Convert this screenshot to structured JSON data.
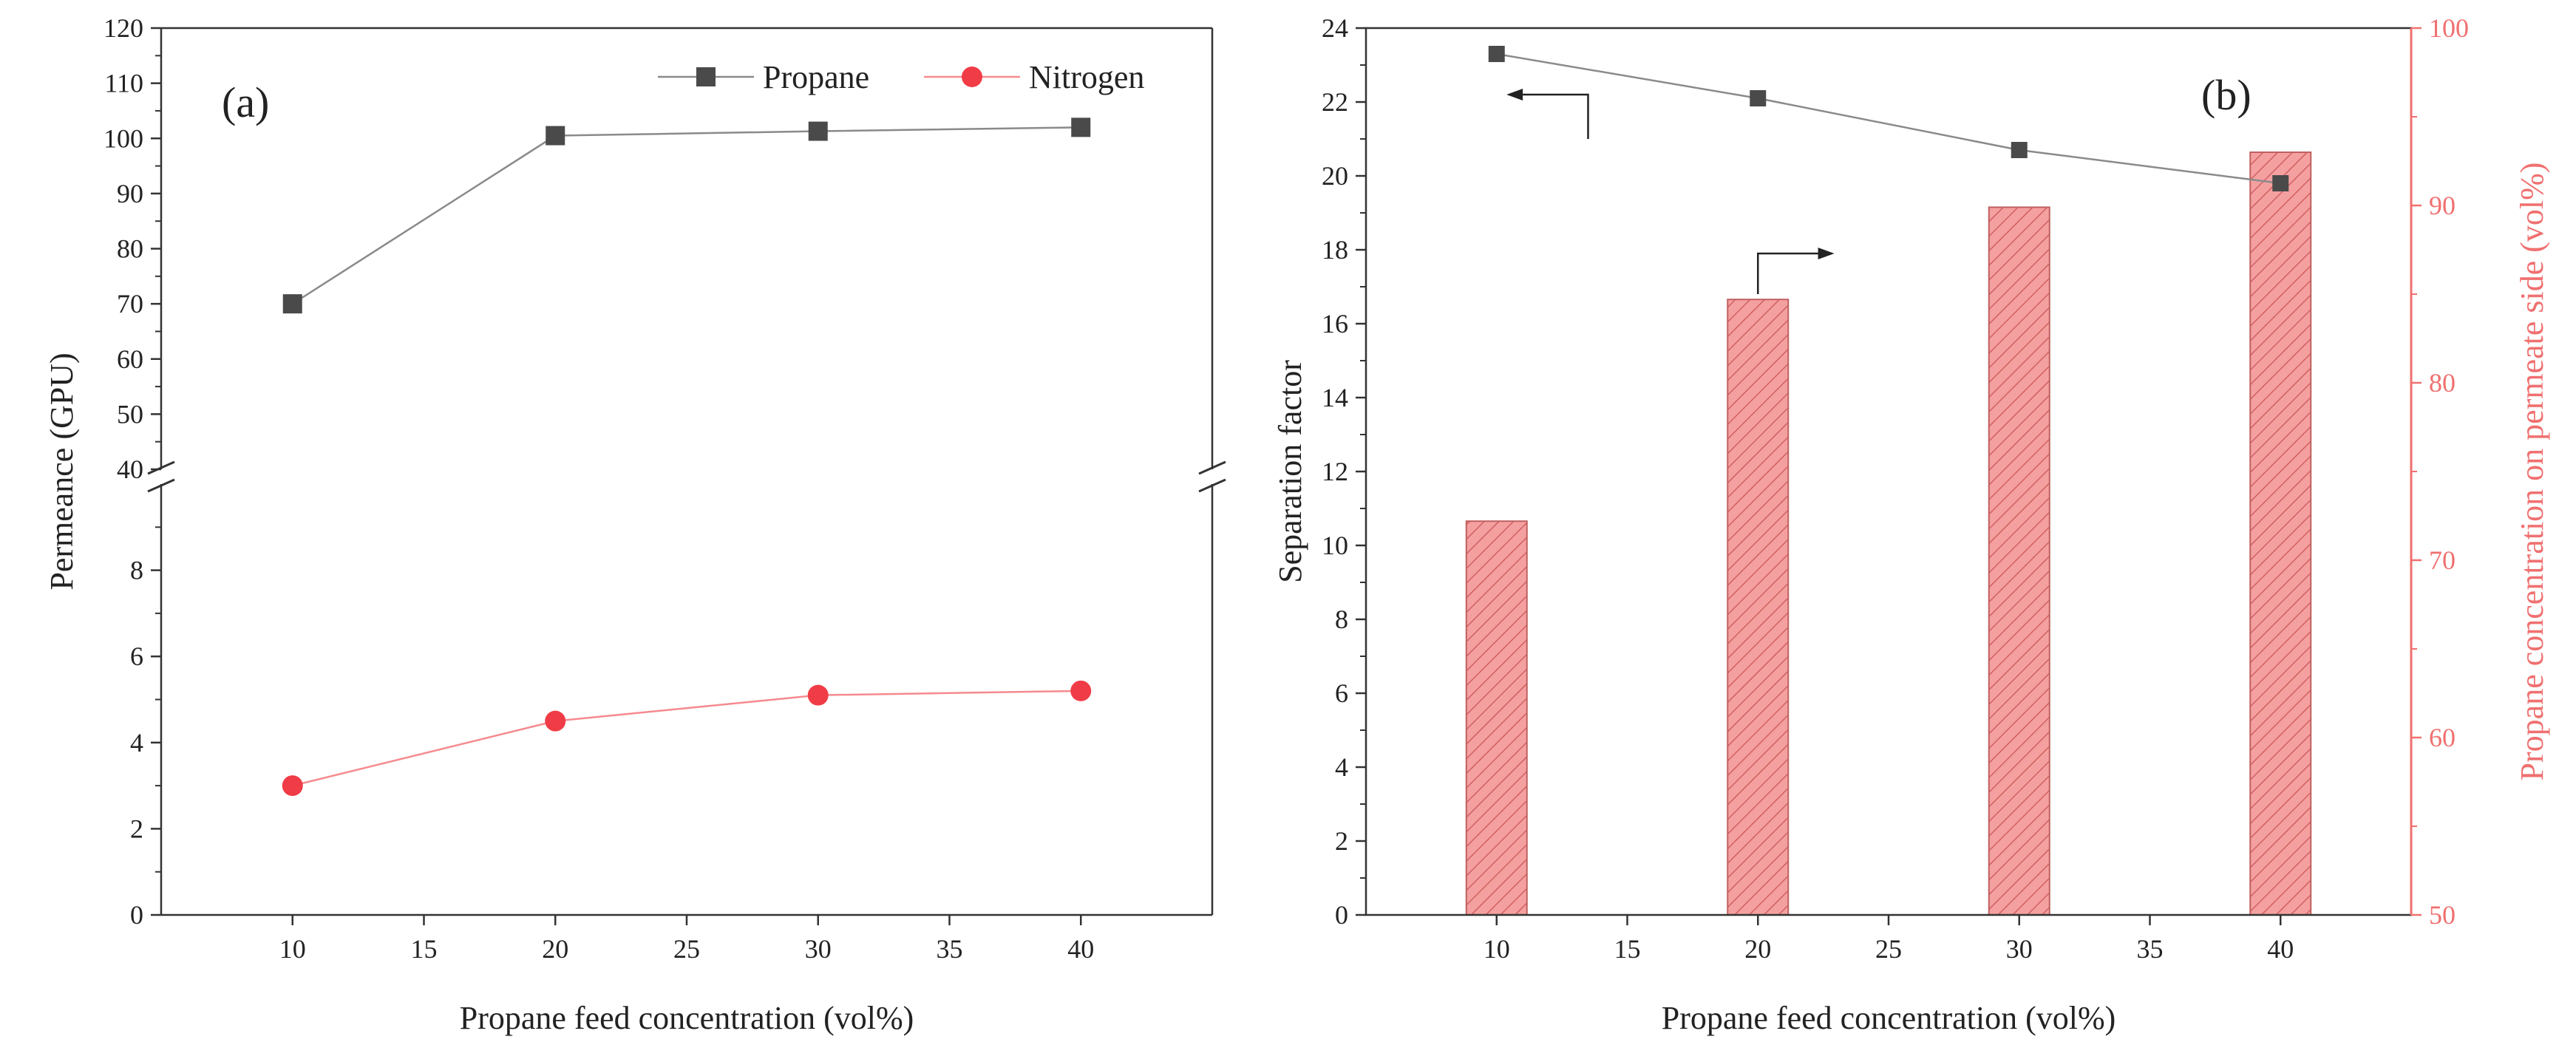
{
  "colors": {
    "propane": "#4a4a4a",
    "nitrogen": "#f03c46",
    "bar_fill": "#f5a0a0",
    "bar_hatch": "#d06060",
    "right_axis": "#f07070",
    "axis": "#333333"
  },
  "chart_data": [
    {
      "panel": "a",
      "type": "line",
      "panel_label": "(a)",
      "xlabel": "Propane feed concentration (vol%)",
      "ylabel": "Permeance (GPU)",
      "x": [
        10,
        20,
        30,
        40
      ],
      "xlim": [
        5,
        45
      ],
      "x_ticks": [
        10,
        15,
        20,
        25,
        30,
        35,
        40
      ],
      "y_break": true,
      "ylim_lower": [
        0,
        10
      ],
      "ylim_upper": [
        40,
        120
      ],
      "y_ticks_lower": [
        0,
        2,
        4,
        6,
        8
      ],
      "y_ticks_upper": [
        40,
        50,
        60,
        70,
        80,
        90,
        100,
        110,
        120
      ],
      "legend_position": "top-right",
      "series": [
        {
          "name": "Propane",
          "marker": "square",
          "values": [
            70,
            100.5,
            101.3,
            102
          ]
        },
        {
          "name": "Nitrogen",
          "marker": "circle",
          "values": [
            3.0,
            4.5,
            5.1,
            5.2
          ]
        }
      ]
    },
    {
      "panel": "b",
      "type": "bar+line",
      "panel_label": "(b)",
      "xlabel": "Propane feed concentration (vol%)",
      "ylabel_left": "Separation factor",
      "ylabel_right": "Propane concentration on permeate side (vol%)",
      "x": [
        10,
        20,
        30,
        40
      ],
      "xlim": [
        5,
        45
      ],
      "x_ticks": [
        10,
        15,
        20,
        25,
        30,
        35,
        40
      ],
      "ylim_left": [
        0,
        24
      ],
      "y_ticks_left": [
        0,
        2,
        4,
        6,
        8,
        10,
        12,
        14,
        16,
        18,
        20,
        22,
        24
      ],
      "ylim_right": [
        50,
        100
      ],
      "y_ticks_right": [
        50,
        60,
        70,
        80,
        90,
        100
      ],
      "line_series": {
        "axis": "left",
        "marker": "square",
        "values": [
          23.3,
          22.1,
          20.7,
          19.8
        ]
      },
      "bar_series": {
        "axis": "right",
        "pattern": "hatched",
        "values": [
          72.2,
          84.7,
          89.9,
          93.0
        ]
      },
      "annotations": [
        {
          "type": "arrow",
          "points_to": "left-axis",
          "attached_to": "line series"
        },
        {
          "type": "arrow",
          "points_to": "right-axis",
          "attached_to": "bar series"
        }
      ]
    }
  ]
}
